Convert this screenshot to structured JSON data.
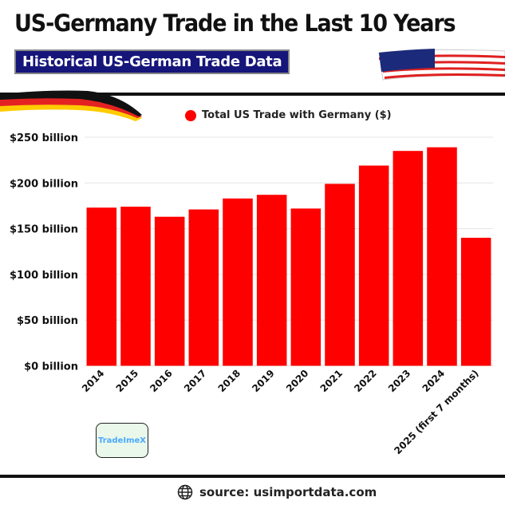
{
  "header": {
    "title": "US-Germany Trade in the Last 10 Years",
    "subtitle": "Historical US-German Trade Data"
  },
  "logo": {
    "text": "TradeImeX"
  },
  "footer": {
    "source": "source: usimportdata.com",
    "icon": "globe-icon"
  },
  "colors": {
    "bar": "#ff0000",
    "subtitle_bg": "#15157a"
  },
  "chart_data": {
    "type": "bar",
    "title": "",
    "legend": {
      "label": "Total US Trade with Germany ($)",
      "position": "top"
    },
    "categories": [
      "2014",
      "2015",
      "2016",
      "2017",
      "2018",
      "2019",
      "2020",
      "2021",
      "2022",
      "2023",
      "2024",
      "2025 (first 7 months)"
    ],
    "series": [
      {
        "name": "Total US Trade with Germany ($)",
        "values": [
          173,
          174,
          163,
          171,
          183,
          187,
          172,
          199,
          219,
          235,
          239,
          140
        ]
      }
    ],
    "unit": "billion USD",
    "ylim": [
      0,
      250
    ],
    "yticks": [
      0,
      50,
      100,
      150,
      200,
      250
    ],
    "ytick_labels": [
      "$0 billion",
      "$50 billion",
      "$100 billion",
      "$150 billion",
      "$200 billion",
      "$250 billion"
    ],
    "grid": true
  }
}
